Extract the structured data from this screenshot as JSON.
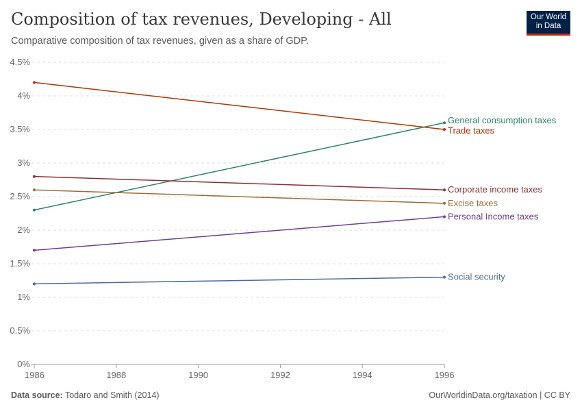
{
  "header": {
    "title": "Composition of tax revenues, Developing - All",
    "subtitle": "Comparative composition of tax revenues, given as a share of GDP.",
    "logo": "Our World in Data"
  },
  "footer": {
    "source_label": "Data source:",
    "source": "Todaro and Smith (2014)",
    "link": "OurWorldinData.org/taxation | CC BY"
  },
  "chart_data": {
    "type": "line",
    "title": "Composition of tax revenues, Developing - All",
    "x": [
      1986,
      1996
    ],
    "xlim": [
      1986,
      1996
    ],
    "ylim": [
      0,
      4.5
    ],
    "x_ticks": [
      "1986",
      "1988",
      "1990",
      "1992",
      "1994",
      "1996"
    ],
    "y_ticks": [
      "0%",
      "0.5%",
      "1%",
      "1.5%",
      "2%",
      "2.5%",
      "3%",
      "3.5%",
      "4%",
      "4.5%"
    ],
    "grid": "horizontal dashed",
    "legend": "inline-right",
    "series": [
      {
        "name": "General consumption taxes",
        "values": [
          2.3,
          3.6
        ],
        "color": "#2c8465"
      },
      {
        "name": "Trade taxes",
        "values": [
          4.2,
          3.5
        ],
        "color": "#b13507"
      },
      {
        "name": "Corporate income taxes",
        "values": [
          2.8,
          2.6
        ],
        "color": "#883039"
      },
      {
        "name": "Excise taxes",
        "values": [
          2.6,
          2.4
        ],
        "color": "#996d39"
      },
      {
        "name": "Personal Income taxes",
        "values": [
          1.7,
          2.2
        ],
        "color": "#6d3e91"
      },
      {
        "name": "Social security",
        "values": [
          1.2,
          1.3
        ],
        "color": "#4c6a9c"
      }
    ]
  }
}
